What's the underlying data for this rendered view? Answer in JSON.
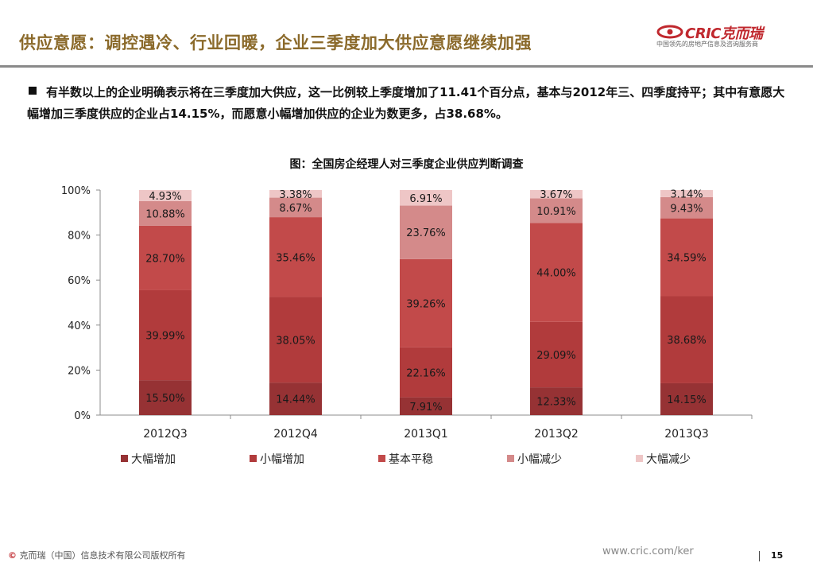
{
  "header": {
    "title": "供应意愿：调控遇冷、行业回暖，企业三季度加大供应意愿继续加强",
    "logo": {
      "name": "CRIC克而瑞",
      "tagline": "中国领先的房地产信息及咨询服务商"
    }
  },
  "bullet": {
    "text": "有半数以上的企业明确表示将在三季度加大供应，这一比例较上季度增加了11.41个百分点，基本与2012年三、四季度持平；其中有意愿大幅增加三季度供应的企业占14.15%，而愿意小幅增加供应的企业为数更多，占38.68%。"
  },
  "chart_data": {
    "type": "bar",
    "stacked": true,
    "title": "图：全国房企经理人对三季度企业供应判断调查",
    "categories": [
      "2012Q3",
      "2012Q4",
      "2013Q1",
      "2013Q2",
      "2013Q3"
    ],
    "y_ticks": [
      "0%",
      "20%",
      "40%",
      "60%",
      "80%",
      "100%"
    ],
    "ylim": [
      0,
      100
    ],
    "legend_position": "bottom",
    "series": [
      {
        "name": "大幅增加",
        "color": "#963234",
        "values": [
          15.5,
          14.44,
          7.91,
          12.33,
          14.15
        ],
        "labels": [
          "15.50%",
          "14.44%",
          "7.91%",
          "12.33%",
          "14.15%"
        ]
      },
      {
        "name": "小幅增加",
        "color": "#b13b3c",
        "values": [
          39.99,
          38.05,
          22.16,
          29.09,
          38.68
        ],
        "labels": [
          "39.99%",
          "38.05%",
          "22.16%",
          "29.09%",
          "38.68%"
        ]
      },
      {
        "name": "基本平稳",
        "color": "#c24a4a",
        "values": [
          28.7,
          35.46,
          39.26,
          44.0,
          34.59
        ],
        "labels": [
          "28.70%",
          "35.46%",
          "39.26%",
          "44.00%",
          "34.59%"
        ]
      },
      {
        "name": "小幅减少",
        "color": "#d48a8a",
        "values": [
          10.88,
          8.67,
          23.76,
          10.91,
          9.43
        ],
        "labels": [
          "10.88%",
          "8.67%",
          "23.76%",
          "10.91%",
          "9.43%"
        ]
      },
      {
        "name": "大幅减少",
        "color": "#eec6c6",
        "values": [
          4.93,
          3.38,
          6.91,
          3.67,
          3.14
        ],
        "labels": [
          "4.93%",
          "3.38%",
          "6.91%",
          "3.67%",
          "3.14%"
        ]
      }
    ]
  },
  "footer": {
    "copyright_symbol": "©",
    "copyright": "克而瑞（中国）信息技术有限公司版权所有",
    "url": "www.cric.com/ker",
    "page_number": "15"
  }
}
